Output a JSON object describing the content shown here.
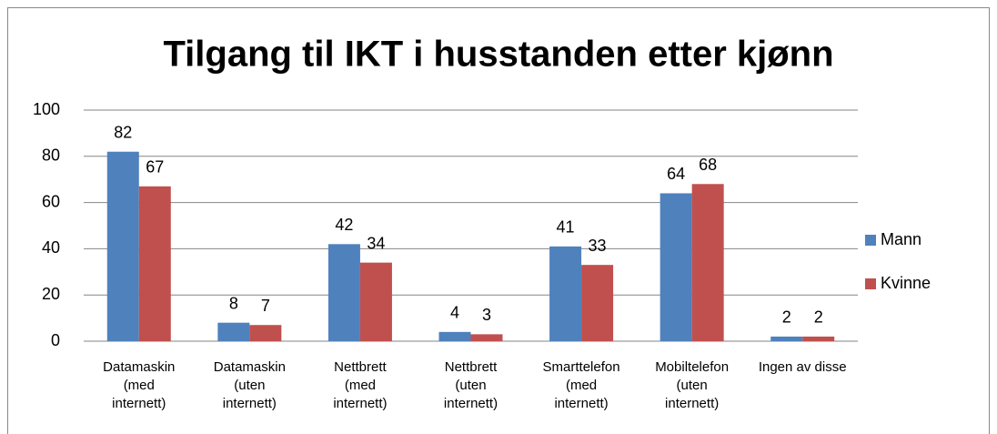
{
  "chart_data": {
    "type": "bar",
    "title": "Tilgang til IKT i husstanden etter kjønn",
    "categories": [
      "Datamaskin\n(med\ninternett)",
      "Datamaskin\n(uten\ninternett)",
      "Nettbrett\n(med\ninternett)",
      "Nettbrett\n(uten\ninternett)",
      "Smarttelefon\n(med\ninternett)",
      "Mobiltelefon\n(uten\ninternett)",
      "Ingen av disse"
    ],
    "series": [
      {
        "name": "Mann",
        "color": "#4f81bd",
        "values": [
          82,
          8,
          42,
          4,
          41,
          64,
          2
        ]
      },
      {
        "name": "Kvinne",
        "color": "#c0504d",
        "values": [
          67,
          7,
          34,
          3,
          33,
          68,
          2
        ]
      }
    ],
    "ylim": [
      0,
      100
    ],
    "yticks": [
      0,
      20,
      40,
      60,
      80,
      100
    ],
    "grid": true,
    "legend": "right"
  }
}
